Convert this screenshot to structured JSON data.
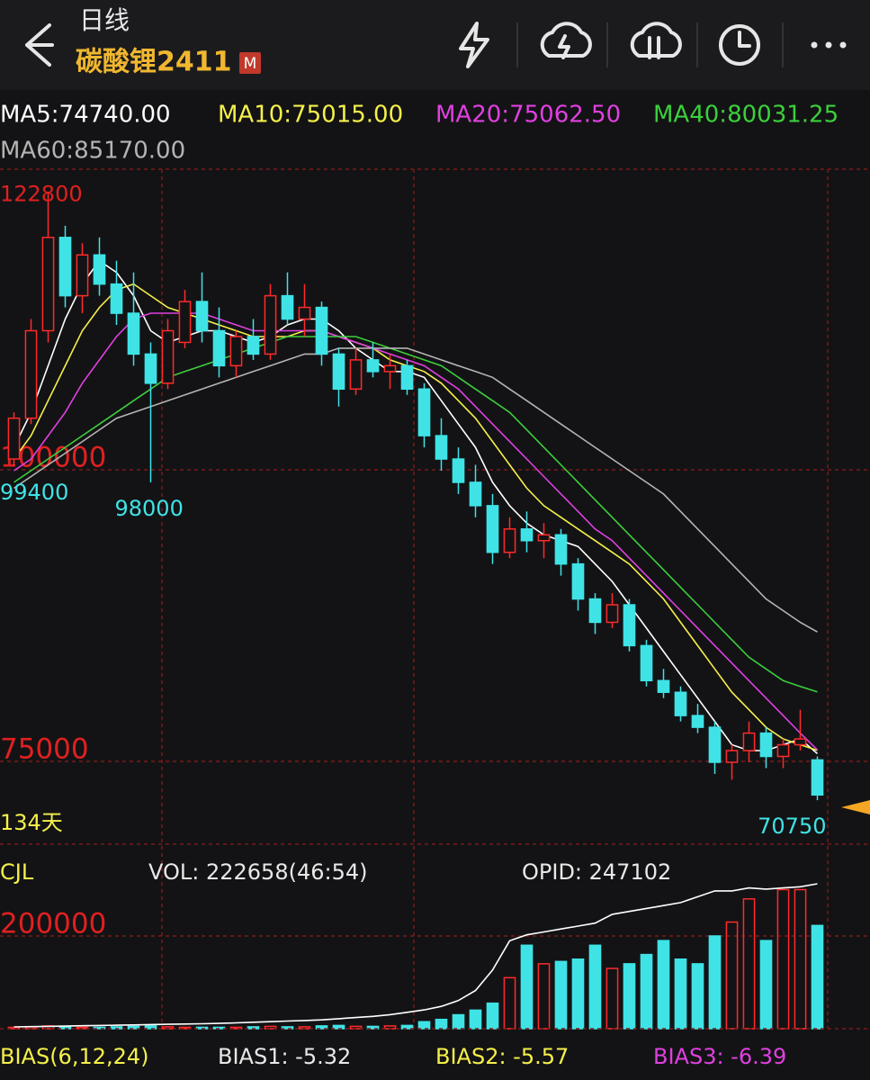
{
  "header": {
    "period": "日线",
    "symbol": "碳酸锂2411",
    "badge": "M"
  },
  "chart_data": [
    {
      "type": "candlestick",
      "open": [
        100000,
        103500,
        111000,
        119000,
        114000,
        117500,
        115000,
        112500,
        109000,
        106500,
        110000,
        113500,
        111000,
        108000,
        110500,
        109000,
        114000,
        112000,
        113000,
        109000,
        106000,
        108500,
        107500,
        108000,
        106000,
        102000,
        100000,
        98000,
        96000,
        92000,
        94000,
        93000,
        93500,
        91000,
        88000,
        86000,
        87500,
        84000,
        81000,
        80000,
        78000,
        77000,
        74000,
        75000,
        76500,
        74500,
        75500,
        74200
      ],
      "high": [
        104000,
        112000,
        122800,
        120000,
        118500,
        119000,
        117000,
        116000,
        110000,
        112000,
        114500,
        116000,
        113000,
        111000,
        112000,
        115000,
        116000,
        115000,
        113500,
        109500,
        109500,
        110000,
        109000,
        108500,
        106500,
        103500,
        101000,
        99500,
        97000,
        95000,
        95500,
        94500,
        94000,
        91500,
        88500,
        88500,
        88000,
        84500,
        82000,
        80500,
        79000,
        77500,
        75500,
        77500,
        77000,
        76000,
        78500,
        74500
      ],
      "low": [
        99400,
        103000,
        110000,
        113000,
        112500,
        114000,
        111500,
        108000,
        98000,
        106000,
        109500,
        110000,
        107000,
        107000,
        108500,
        108500,
        111500,
        110500,
        108000,
        104500,
        105500,
        107000,
        106000,
        105500,
        101000,
        99000,
        97000,
        95000,
        91000,
        91500,
        92000,
        91500,
        90000,
        87000,
        85000,
        85500,
        83500,
        80500,
        79500,
        77500,
        76500,
        73000,
        72500,
        74000,
        73500,
        73500,
        75000,
        70750
      ],
      "close": [
        103500,
        111000,
        119000,
        114000,
        117500,
        115000,
        112500,
        109000,
        106500,
        111000,
        113500,
        111000,
        108000,
        110500,
        109000,
        114000,
        112000,
        113000,
        109000,
        106000,
        108500,
        107500,
        108000,
        106000,
        102000,
        100000,
        98000,
        96000,
        92000,
        94000,
        93000,
        93500,
        91000,
        88000,
        86000,
        87500,
        84000,
        81000,
        80000,
        78000,
        77000,
        74000,
        75000,
        76500,
        74500,
        75500,
        76000,
        71200
      ],
      "up_color": "#ff2a2a",
      "down_color": "#3fe3e6",
      "ylim": [
        66975,
        124850
      ],
      "yticks": [
        75000,
        100000
      ],
      "grid": true,
      "days_label": "134天",
      "series": [
        {
          "name": "MA5:74740.00",
          "color": "#ffffff",
          "values": [
            101000,
            104000,
            108000,
            112000,
            115000,
            117000,
            116000,
            114000,
            111000,
            110000,
            110500,
            111000,
            111000,
            110500,
            110000,
            110500,
            111500,
            112000,
            112000,
            111000,
            109500,
            108500,
            107500,
            107500,
            107000,
            105000,
            103000,
            101000,
            98000,
            96000,
            94500,
            93500,
            93000,
            92500,
            91000,
            89500,
            87500,
            85500,
            83500,
            81500,
            79500,
            77500,
            75500,
            75000,
            75000,
            75500,
            76000,
            74740
          ]
        },
        {
          "name": "MA10:75015.00",
          "color": "#f5f04a",
          "values": [
            100000,
            102000,
            105000,
            108000,
            111000,
            113000,
            114500,
            115000,
            114000,
            113000,
            112500,
            112000,
            111500,
            111000,
            110500,
            110500,
            110500,
            111000,
            111000,
            110500,
            110000,
            109500,
            108500,
            108000,
            107500,
            106500,
            105000,
            103500,
            101500,
            99500,
            97500,
            96000,
            95000,
            94000,
            93000,
            92000,
            91000,
            89500,
            88000,
            86000,
            84000,
            82000,
            80000,
            78500,
            77000,
            76000,
            75500,
            75015
          ]
        },
        {
          "name": "MA20:75062.50",
          "color": "#e040e0",
          "values": [
            99000,
            100000,
            102000,
            104000,
            106500,
            108500,
            110500,
            112000,
            112500,
            112500,
            112500,
            112500,
            112000,
            111500,
            111000,
            111000,
            111000,
            111000,
            111000,
            110500,
            110000,
            109500,
            109000,
            108500,
            108000,
            107000,
            106000,
            104500,
            103000,
            101500,
            100000,
            98500,
            97000,
            95500,
            94000,
            93000,
            91500,
            90000,
            88500,
            87000,
            85500,
            84000,
            82500,
            81000,
            79500,
            78000,
            76500,
            75062.5
          ]
        },
        {
          "name": "MA40:80031.25",
          "color": "#3ccf3c",
          "values": [
            98000,
            99000,
            100000,
            101000,
            102000,
            103000,
            104000,
            105000,
            106000,
            107000,
            107500,
            108000,
            108500,
            109000,
            109500,
            110000,
            110500,
            110500,
            110500,
            110500,
            110500,
            110000,
            109500,
            109000,
            108500,
            108000,
            107000,
            106000,
            105000,
            104000,
            102500,
            101000,
            99500,
            98000,
            96500,
            95000,
            93500,
            92000,
            90500,
            89000,
            87500,
            86000,
            84500,
            83000,
            82000,
            81000,
            80500,
            80031.25
          ]
        },
        {
          "name": "MA60:85170.00",
          "color": "#b4b4b4",
          "values": [
            97500,
            98500,
            99500,
            100500,
            101500,
            102500,
            103500,
            104000,
            104500,
            105000,
            105500,
            106000,
            106500,
            107000,
            107500,
            108000,
            108500,
            109000,
            109000,
            109500,
            109500,
            109500,
            109500,
            109500,
            109000,
            108500,
            108000,
            107500,
            107000,
            106000,
            105000,
            104000,
            103000,
            102000,
            101000,
            100000,
            99000,
            98000,
            97000,
            95500,
            94000,
            92500,
            91000,
            89500,
            88000,
            87000,
            86000,
            85170
          ]
        }
      ]
    },
    {
      "type": "bar",
      "title": "CJL",
      "annotations": [
        "VOL: 222658(46:54)",
        "OPID: 247102"
      ],
      "values": [
        3000,
        4000,
        6000,
        5000,
        3000,
        3000,
        4000,
        5000,
        6000,
        4000,
        3000,
        3000,
        3000,
        3000,
        4000,
        5000,
        4000,
        4000,
        6000,
        7000,
        5000,
        5000,
        6000,
        7000,
        15000,
        20000,
        30000,
        40000,
        55000,
        110000,
        180000,
        140000,
        145000,
        150000,
        180000,
        130000,
        140000,
        160000,
        190000,
        150000,
        140000,
        200000,
        230000,
        280000,
        190000,
        300000,
        300000,
        222658
      ],
      "ylim": [
        0,
        365000
      ],
      "yticks": [
        200000
      ],
      "grid": true,
      "y2lim": [
        0,
        288500
      ],
      "series": [
        {
          "name": "OPID",
          "color": "#ffffff",
          "axis": "y2",
          "values": [
            3000,
            3500,
            4000,
            4500,
            5000,
            5500,
            6000,
            6500,
            7000,
            7500,
            8000,
            8500,
            9000,
            10000,
            11000,
            12000,
            13000,
            14000,
            15000,
            17000,
            19000,
            21000,
            24000,
            28000,
            32000,
            38000,
            48000,
            65000,
            100000,
            150000,
            160000,
            165000,
            170000,
            175000,
            180000,
            195000,
            200000,
            205000,
            210000,
            215000,
            225000,
            235000,
            235000,
            240000,
            238000,
            240000,
            242000,
            247102
          ]
        }
      ],
      "footer": [
        "BIAS(6,12,24)",
        "BIAS1: -5.32",
        "BIAS2: -5.57",
        "BIAS3: -6.39"
      ]
    }
  ]
}
